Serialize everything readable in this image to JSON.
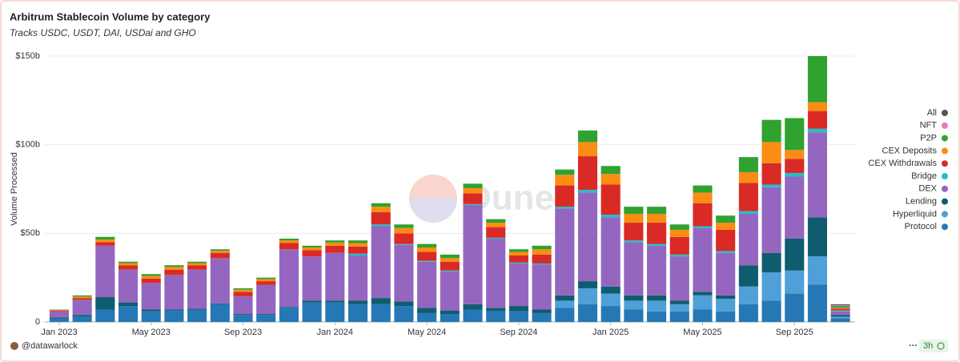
{
  "chart_data": {
    "type": "stacked_bar",
    "title": "Arbitrum Stablecoin Volume by category",
    "subtitle": "Tracks USDC, USDT, DAI, USDai and GHO",
    "y_label": "Volume Processed",
    "watermark": "Dune",
    "author": "@datawarlock",
    "freshness": "3h",
    "categories": [
      "Jan 2023",
      null,
      null,
      null,
      "May 2023",
      null,
      null,
      null,
      "Sep 2023",
      null,
      null,
      null,
      "Jan 2024",
      null,
      null,
      null,
      "May 2024",
      null,
      null,
      null,
      "Sep 2024",
      null,
      null,
      null,
      "Jan 2025",
      null,
      null,
      null,
      "May 2025",
      null,
      null,
      null,
      "Sep 2025",
      null,
      null
    ],
    "ylim": [
      0,
      150
    ],
    "yticks": [
      0,
      {
        "value": 50,
        "label": "$50b"
      },
      {
        "value": 100,
        "label": "$100b"
      },
      {
        "value": 150,
        "label": "$150b"
      }
    ],
    "grid": true,
    "legend": "right",
    "series": [
      {
        "name": "Protocol",
        "color": "#2677b5",
        "values": [
          2,
          3,
          7,
          9,
          6,
          6.5,
          7,
          10,
          4,
          4,
          8,
          11,
          11,
          10,
          10,
          9,
          5,
          4.5,
          7,
          6,
          6,
          5,
          8,
          10,
          9,
          7,
          6,
          6,
          7,
          6,
          10,
          12,
          16,
          21,
          2
        ]
      },
      {
        "name": "Hyperliquid",
        "color": "#4f9fd8",
        "values": [
          0,
          0,
          0,
          0,
          0,
          0,
          0,
          0,
          0,
          0,
          0,
          0,
          0,
          0,
          0,
          0,
          0,
          0,
          0,
          0,
          0,
          0,
          4,
          9,
          7,
          5,
          6,
          4,
          8,
          7,
          10,
          16,
          13,
          16,
          1
        ]
      },
      {
        "name": "Lending",
        "color": "#0f5c70",
        "values": [
          0.5,
          1,
          7,
          2,
          1,
          0.5,
          0.5,
          0.5,
          0.5,
          0.5,
          0.5,
          1,
          1,
          2,
          3.5,
          2.5,
          3,
          2,
          3,
          2,
          3,
          2,
          3,
          4,
          4,
          3,
          3,
          2,
          2,
          2,
          12,
          11,
          18,
          22,
          1
        ]
      },
      {
        "name": "DEX",
        "color": "#9466c0",
        "values": [
          3.5,
          8.5,
          29,
          18.5,
          15,
          19.5,
          22,
          25.5,
          10,
          16.5,
          32.5,
          25,
          27,
          25.5,
          40.5,
          32,
          26,
          22,
          56,
          39,
          24,
          25.5,
          49,
          50,
          39,
          30,
          28,
          25,
          36,
          24,
          29,
          37,
          35,
          48,
          2
        ]
      },
      {
        "name": "Bridge",
        "color": "#1fbfcf",
        "values": [
          0,
          0,
          0,
          0,
          0,
          0,
          0,
          0,
          0,
          0,
          0,
          0,
          0,
          1,
          1,
          0.5,
          0.5,
          0.5,
          0.5,
          0.5,
          0.5,
          0.5,
          1,
          1.5,
          1.5,
          1,
          1,
          1,
          1,
          1,
          1.5,
          1.5,
          2,
          2,
          0.5
        ]
      },
      {
        "name": "CEX Withdrawals",
        "color": "#d92a26",
        "values": [
          0.5,
          1,
          2,
          2.5,
          2.5,
          3,
          2.5,
          3,
          2.5,
          2,
          3.5,
          3.5,
          4,
          4,
          7,
          6,
          5,
          5,
          6,
          6,
          4,
          5,
          12,
          19,
          17,
          10,
          12,
          10,
          13,
          12,
          16,
          12,
          8,
          10,
          1
        ]
      },
      {
        "name": "CEX Deposits",
        "color": "#fb8c14",
        "values": [
          0.3,
          0.8,
          1.5,
          1.2,
          1.5,
          1.5,
          1.2,
          1.2,
          1.2,
          1.2,
          1.5,
          1.5,
          1.8,
          2,
          3,
          3,
          2.5,
          2,
          3,
          2.5,
          2,
          3,
          6,
          8,
          6,
          5,
          5,
          4,
          6,
          4,
          6,
          12,
          5,
          5,
          0.5
        ]
      },
      {
        "name": "P2P",
        "color": "#2fa22f",
        "values": [
          0.2,
          0.7,
          1.5,
          0.8,
          1,
          1,
          0.8,
          0.8,
          0.8,
          0.8,
          1,
          1,
          1.2,
          1.5,
          2,
          2,
          2,
          2,
          2.5,
          2,
          1.5,
          2,
          3,
          6.5,
          4.5,
          4,
          4,
          3,
          4,
          4,
          8.5,
          12.5,
          18,
          26,
          1
        ]
      },
      {
        "name": "NFT",
        "color": "#e57ac4",
        "values": [
          0,
          0,
          0,
          0,
          0,
          0,
          0,
          0,
          0,
          0,
          0,
          0,
          0,
          0,
          0,
          0,
          0,
          0,
          0,
          0,
          0,
          0,
          0,
          0,
          0,
          0,
          0,
          0,
          0,
          0,
          0,
          0,
          0,
          0,
          0.5
        ]
      },
      {
        "name": "All",
        "color": "#555555",
        "values": [
          0,
          0,
          0,
          0,
          0,
          0,
          0,
          0,
          0,
          0,
          0,
          0,
          0,
          0,
          0,
          0,
          0,
          0,
          0,
          0,
          0,
          0,
          0,
          0,
          0,
          0,
          0,
          0,
          0,
          0,
          0,
          0,
          0,
          0,
          0.5
        ]
      }
    ]
  }
}
